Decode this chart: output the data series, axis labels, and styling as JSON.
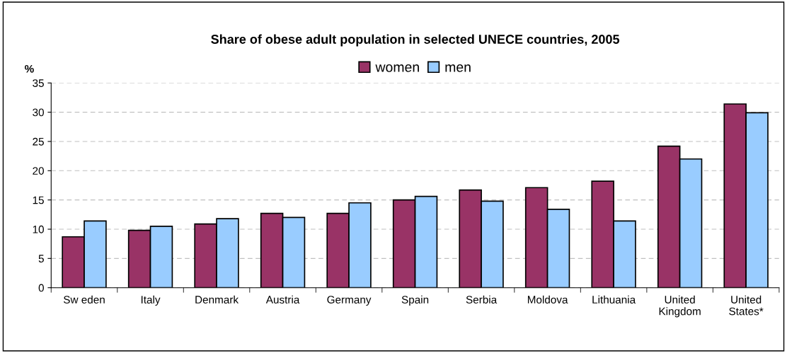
{
  "chart_data": {
    "type": "bar",
    "title": "Share of obese adult population in selected UNECE countries, 2005",
    "ylabel": "%",
    "categories": [
      "Sw eden",
      "Italy",
      "Denmark",
      "Austria",
      "Germany",
      "Spain",
      "Serbia",
      "Moldova",
      "Lithuania",
      "United\nKingdom",
      "United\nStates*"
    ],
    "series": [
      {
        "name": "women",
        "color": "#993366",
        "values": [
          8.7,
          9.8,
          10.9,
          12.7,
          12.7,
          15.0,
          16.7,
          17.1,
          18.2,
          24.2,
          31.4
        ]
      },
      {
        "name": "men",
        "color": "#99ccff",
        "values": [
          11.4,
          10.5,
          11.8,
          12.0,
          14.5,
          15.6,
          14.8,
          13.4,
          11.4,
          22.0,
          29.9
        ]
      }
    ],
    "ylim": [
      0,
      35
    ],
    "yticks": [
      0,
      5,
      10,
      15,
      20,
      25,
      30,
      35
    ],
    "grid": "y",
    "legend": "top"
  }
}
